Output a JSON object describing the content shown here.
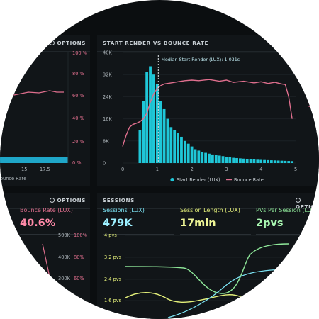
{
  "panels": {
    "top_left": {
      "options": "OPTIONS",
      "y_right_ticks": [
        "100 %",
        "80 %",
        "60 %",
        "40 %",
        "20 %",
        "0 %"
      ],
      "x_ticks": [
        "15",
        "17.5"
      ],
      "legend_fragment": "ounce Rate"
    },
    "top_main": {
      "title": "START RENDER VS BOUNCE RATE",
      "options": "OPTIONS"
    },
    "bottom_left": {
      "options": "OPTIONS",
      "metric_label": "Bounce Rate (LUX)",
      "metric_value": "40.6%",
      "left_ticks": [
        "500K",
        "400K",
        "300K"
      ],
      "right_ticks": [
        "100%",
        "80%",
        "60%"
      ]
    },
    "bottom_main": {
      "title": "SESSIONS",
      "options": "OPTIONS",
      "metrics": [
        {
          "label": "Sessions (LUX)",
          "value": "479K",
          "color": "#7de6f7"
        },
        {
          "label": "Session Length (LUX)",
          "value": "17min",
          "color": "#e4f07a"
        },
        {
          "label": "PVs Per Session (LUX)",
          "value": "2pvs",
          "color": "#8fe89a"
        }
      ],
      "y_ticks": [
        "4 pvs",
        "3.2 pvs",
        "2.4 pvs",
        "1.6 pvs"
      ]
    }
  },
  "chart_data": {
    "type": "bar",
    "title": "START RENDER VS BOUNCE RATE",
    "annotation": "Median Start Render (LUX): 1.031s",
    "x_ticks": [
      "0",
      "1",
      "2",
      "3",
      "4",
      "5"
    ],
    "y_left_ticks": [
      "0",
      "8K",
      "16K",
      "24K",
      "32K",
      "40K"
    ],
    "y_right_ticks": [
      "20",
      "40",
      "60"
    ],
    "ylim": [
      0,
      40000
    ],
    "xlim": [
      0,
      5
    ],
    "legend": [
      "Start Render (LUX)",
      "Bounce Rate"
    ],
    "series": [
      {
        "name": "Start Render (LUX)",
        "color": "#1fc7d8",
        "x": [
          0.5,
          0.6,
          0.7,
          0.8,
          0.9,
          1.0,
          1.1,
          1.2,
          1.3,
          1.4,
          1.5,
          1.6,
          1.7,
          1.8,
          1.9,
          2.0,
          2.1,
          2.2,
          2.3,
          2.4,
          2.5,
          2.6,
          2.7,
          2.8,
          2.9,
          3.0,
          3.1,
          3.2,
          3.3,
          3.4,
          3.5,
          3.6,
          3.7,
          3.8,
          3.9,
          4.0,
          4.1,
          4.2,
          4.3,
          4.4,
          4.5,
          4.6,
          4.7,
          4.8,
          4.9
        ],
        "values": [
          12000,
          22500,
          33000,
          35000,
          32000,
          28500,
          22500,
          19500,
          16000,
          13000,
          12000,
          11000,
          9500,
          8000,
          7000,
          6000,
          5000,
          4500,
          4000,
          3700,
          3400,
          3100,
          2900,
          2700,
          2500,
          2300,
          2100,
          1900,
          1800,
          1700,
          1600,
          1500,
          1400,
          1300,
          1200,
          1150,
          1100,
          1050,
          1000,
          950,
          900,
          850,
          800,
          750,
          700
        ]
      },
      {
        "name": "Bounce Rate",
        "color": "#e06f8e",
        "x": [
          0.0,
          0.1,
          0.2,
          0.3,
          0.4,
          0.5,
          0.6,
          0.7,
          0.8,
          0.9,
          1.0,
          1.1,
          1.2,
          1.4,
          1.6,
          1.8,
          2.0,
          2.2,
          2.5,
          2.8,
          3.0,
          3.2,
          3.5,
          3.8,
          4.0,
          4.2,
          4.4,
          4.6,
          4.7,
          4.8,
          4.9
        ],
        "values": [
          3.0,
          5.0,
          6.5,
          7.0,
          7.2,
          7.5,
          8.0,
          9.0,
          11.0,
          12.5,
          13.5,
          14.0,
          14.3,
          14.5,
          14.7,
          14.9,
          15.0,
          14.9,
          15.1,
          14.8,
          15.0,
          14.6,
          14.8,
          14.5,
          14.7,
          14.4,
          14.6,
          14.3,
          14.2,
          12.0,
          8.0
        ]
      }
    ]
  }
}
